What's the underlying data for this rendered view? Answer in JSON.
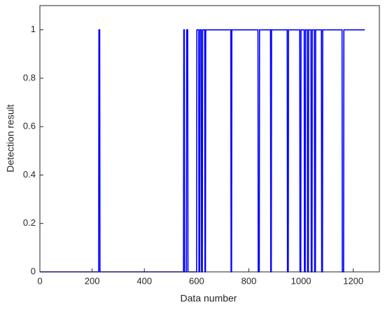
{
  "chart_data": {
    "type": "line",
    "x_label": "Data number",
    "y_label": "Detection result",
    "x": [
      0,
      225,
      226,
      229,
      230,
      550,
      551,
      553,
      554,
      561,
      562,
      566,
      567,
      600,
      601,
      608,
      609,
      612,
      613,
      618,
      619,
      622,
      623,
      631,
      632,
      634,
      635,
      731,
      732,
      734,
      735,
      835,
      836,
      840,
      841,
      883,
      884,
      886,
      887,
      947,
      948,
      951,
      952,
      995,
      996,
      999,
      1000,
      1012,
      1013,
      1016,
      1017,
      1024,
      1025,
      1028,
      1029,
      1038,
      1039,
      1042,
      1043,
      1051,
      1052,
      1055,
      1056,
      1078,
      1079,
      1082,
      1083,
      1157,
      1158,
      1163,
      1164,
      1244
    ],
    "series": [
      {
        "color": "#0000ff",
        "values": [
          0,
          0,
          1,
          1,
          0,
          0,
          1,
          1,
          0,
          0,
          1,
          1,
          0,
          0,
          1,
          1,
          0,
          0,
          1,
          1,
          0,
          0,
          1,
          1,
          0,
          0,
          1,
          1,
          0,
          0,
          1,
          1,
          0,
          0,
          1,
          1,
          0,
          0,
          1,
          1,
          0,
          0,
          1,
          1,
          0,
          0,
          1,
          1,
          0,
          0,
          1,
          1,
          0,
          0,
          1,
          1,
          0,
          0,
          1,
          1,
          0,
          0,
          1,
          1,
          0,
          0,
          1,
          1,
          0,
          0,
          1,
          1
        ]
      }
    ],
    "xlim": [
      0,
      1300
    ],
    "ylim": [
      0,
      1.1
    ],
    "xticks": [
      0,
      200,
      400,
      600,
      800,
      1000,
      1200
    ],
    "yticks": [
      0,
      0.2,
      0.4,
      0.6,
      0.8,
      1
    ]
  }
}
